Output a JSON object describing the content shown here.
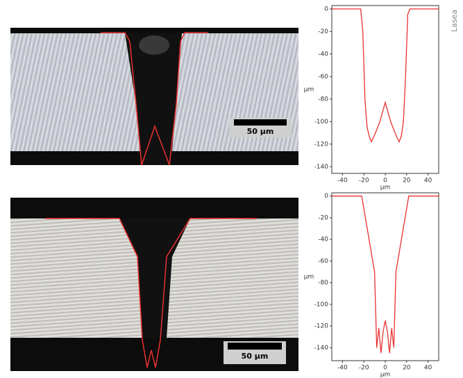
{
  "chart_data": [
    {
      "type": "line",
      "xlabel": "µm",
      "ylabel": "µm",
      "x": [
        -50,
        -23,
        -21,
        -19,
        -17,
        -15,
        -13,
        -10,
        -5,
        0,
        5,
        10,
        13,
        15,
        17,
        19,
        21,
        23,
        50
      ],
      "series": [
        {
          "color": "#e8312f",
          "values": [
            0,
            0,
            -20,
            -80,
            -105,
            -113,
            -118,
            -112,
            -100,
            -83,
            -100,
            -112,
            -118,
            -113,
            -100,
            -60,
            -5,
            0,
            0
          ]
        }
      ],
      "xlim": [
        -50,
        50
      ],
      "xticks": [
        -40,
        -20,
        0,
        20,
        40
      ],
      "ylim": [
        -146,
        3
      ],
      "yticks": [
        0,
        -20,
        -40,
        -60,
        -80,
        -100,
        -120,
        -140
      ]
    },
    {
      "type": "line",
      "xlabel": "µm",
      "ylabel": "µm",
      "x": [
        -50,
        -22,
        -10,
        -8,
        -6,
        -4,
        -2,
        0,
        2,
        4,
        6,
        8,
        10,
        22,
        50
      ],
      "series": [
        {
          "color": "#e8312f",
          "values": [
            0,
            0,
            -70,
            -140,
            -122,
            -145,
            -125,
            -115,
            -125,
            -145,
            -122,
            -140,
            -70,
            0,
            0
          ]
        }
      ],
      "xlim": [
        -50,
        50
      ],
      "xticks": [
        -40,
        -20,
        0,
        20,
        40
      ],
      "ylim": [
        -152,
        3
      ],
      "yticks": [
        0,
        -20,
        -40,
        -60,
        -80,
        -100,
        -120,
        -140
      ]
    }
  ],
  "images": [
    {
      "scale_bar": "50 µm"
    },
    {
      "scale_bar": "50 µm"
    }
  ],
  "credit": "Lasea"
}
